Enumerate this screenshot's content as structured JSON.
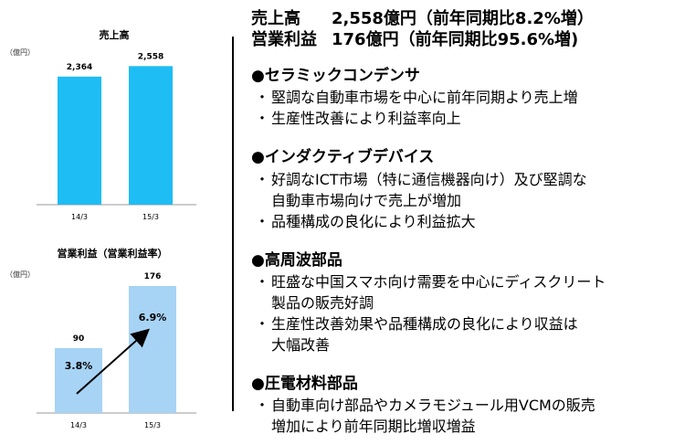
{
  "colors": {
    "sales_bar": "#1ebdf4",
    "profit_bar": "#a7d3f5",
    "arrow": "#000000",
    "text": "#000000"
  },
  "headline": {
    "sales_label": "売上高",
    "sales_value": "2,558億円（前年同期比8.2%増）",
    "op_label": "営業利益",
    "op_value": "176億円（前年同期比95.6%増)"
  },
  "sections": [
    {
      "title": "●セラミックコンデンサ",
      "bullets": [
        [
          "堅調な自動車市場を中心に前年同期より売上増"
        ],
        [
          "生産性改善により利益率向上"
        ]
      ]
    },
    {
      "title": "●インダクティブデバイス",
      "bullets": [
        [
          "好調なICT市場（特に通信機器向け）及び堅調な",
          "自動車市場向けで売上が増加"
        ],
        [
          "品種構成の良化により利益拡大"
        ]
      ]
    },
    {
      "title": "●高周波部品",
      "bullets": [
        [
          "旺盛な中国スマホ向け需要を中心にディスクリート",
          "製品の販売好調"
        ],
        [
          "生産性改善効果や品種構成の良化により収益は",
          "大幅改善"
        ]
      ]
    },
    {
      "title": "●圧電材料部品",
      "bullets": [
        [
          "自動車向け部品やカメラモジュール用VCMの販売",
          "増加により前年同期比増収増益"
        ]
      ]
    }
  ],
  "chart_data": [
    {
      "type": "bar",
      "title": "売上高",
      "unit": "（億円）",
      "categories": [
        "14/3",
        "15/3"
      ],
      "values": [
        2364,
        2558
      ],
      "value_labels": [
        "2,364",
        "2,558"
      ],
      "ylim": [
        0,
        2800
      ]
    },
    {
      "type": "bar",
      "title": "営業利益（営業利益率）",
      "unit": "（億円）",
      "categories": [
        "14/3",
        "15/3"
      ],
      "values": [
        90,
        176
      ],
      "value_labels": [
        "90",
        "176"
      ],
      "margin_labels": [
        "3.8%",
        "6.9%"
      ],
      "annotation": "arrow from 3.8% to 6.9%",
      "ylim": [
        0,
        200
      ]
    }
  ]
}
